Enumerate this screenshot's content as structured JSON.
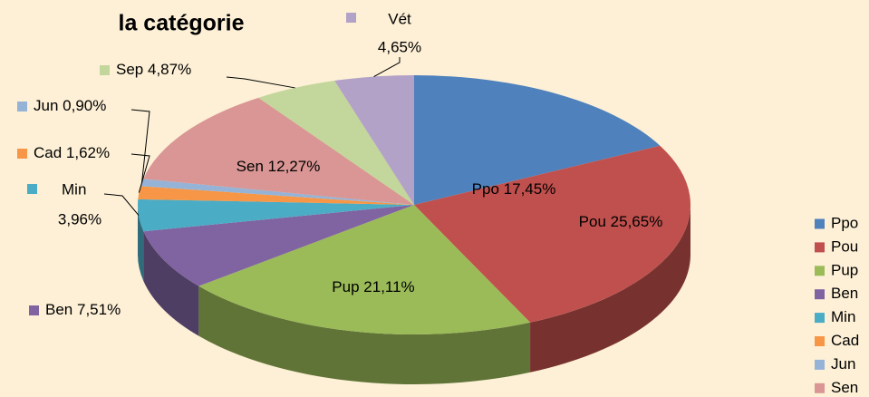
{
  "chart_data": {
    "type": "pie3d",
    "title": "la catégorie",
    "categories": [
      "Ppo",
      "Pou",
      "Pup",
      "Ben",
      "Min",
      "Cad",
      "Jun",
      "Sen",
      "Sep",
      "Vét"
    ],
    "values": [
      17.45,
      25.65,
      21.11,
      7.51,
      3.96,
      1.62,
      0.9,
      12.27,
      4.87,
      4.65
    ],
    "value_labels": [
      "17,45%",
      "25,65%",
      "21,11%",
      "7,51%",
      "3,96%",
      "1,62%",
      "0,90%",
      "12,27%",
      "4,87%",
      "4,65%"
    ],
    "colors": [
      "#4f81bd",
      "#c0504d",
      "#9bbb59",
      "#8064a2",
      "#4bacc6",
      "#f79646",
      "#95b3d7",
      "#d99694",
      "#c3d69b",
      "#b3a2c7"
    ],
    "legend": "right"
  }
}
